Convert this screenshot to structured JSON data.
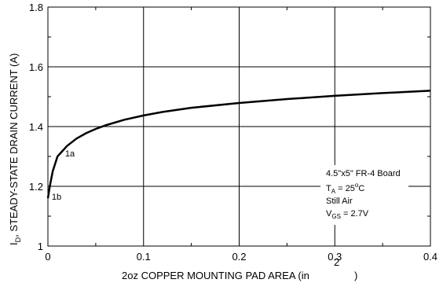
{
  "chart_data": {
    "type": "line",
    "title": "",
    "xlabel": "2oz COPPER MOUNTING PAD AREA (in",
    "xlabel_exp": "2",
    "xlabel_close": ")",
    "ylabel_main": "I",
    "ylabel_sub": "D",
    "ylabel_rest": ", STEADY-STATE DRAIN CURRENT (A)",
    "xlim": [
      0,
      0.4
    ],
    "ylim": [
      1,
      1.8
    ],
    "x_ticks": [
      0,
      0.1,
      0.2,
      0.3,
      0.4
    ],
    "x_tick_labels": [
      "0",
      "0.1",
      "0.2",
      "0.3",
      "0.4"
    ],
    "y_ticks": [
      1,
      1.2,
      1.4,
      1.6,
      1.8
    ],
    "y_tick_labels": [
      "1",
      "1.2",
      "1.4",
      "1.6",
      "1.8"
    ],
    "grid": true,
    "series": [
      {
        "x": [
          0.0,
          0.002,
          0.005,
          0.01,
          0.02,
          0.03,
          0.04,
          0.05,
          0.06,
          0.08,
          0.1,
          0.12,
          0.15,
          0.2,
          0.25,
          0.3,
          0.35,
          0.4
        ],
        "y": [
          1.16,
          1.2,
          1.25,
          1.3,
          1.335,
          1.36,
          1.378,
          1.392,
          1.404,
          1.423,
          1.437,
          1.449,
          1.463,
          1.479,
          1.492,
          1.503,
          1.512,
          1.52
        ],
        "color": "#000000"
      }
    ],
    "annotations": [
      {
        "text": "1a",
        "x": 0.018,
        "y": 1.3
      },
      {
        "text": "1b",
        "x": 0.004,
        "y": 1.155
      }
    ],
    "conditions": {
      "board": "4.5\"x5\" FR-4 Board",
      "ta_main": "T",
      "ta_sub": "A",
      "ta_rest": " = 25",
      "ta_deg": "o",
      "ta_unit": "C",
      "air": "Still Air",
      "vgs_main": "V",
      "vgs_sub": "GS",
      "vgs_rest": " = 2.7V"
    }
  }
}
